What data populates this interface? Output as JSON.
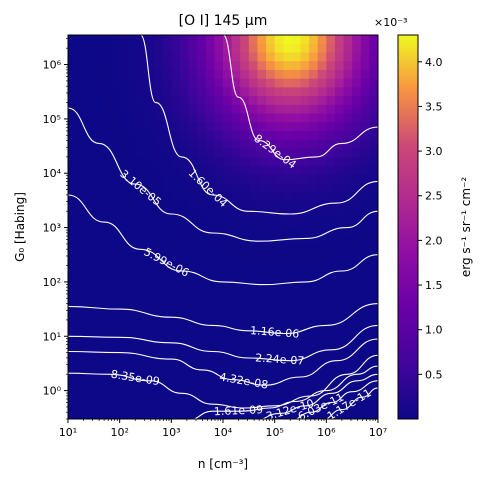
{
  "chart_data": {
    "type": "heatmap",
    "title": "[O I] 145 μm",
    "xlabel": "n [cm⁻³]",
    "ylabel": "G₀ [Habing]",
    "x_scale": "log",
    "y_scale": "log",
    "xlim": [
      10,
      10000000
    ],
    "ylim": [
      0.3,
      3500000
    ],
    "x_tick_labels": [
      "10¹",
      "10²",
      "10³",
      "10⁴",
      "10⁵",
      "10⁶",
      "10⁷"
    ],
    "y_tick_labels": [
      "10⁰",
      "10¹",
      "10²",
      "10³",
      "10⁴",
      "10⁵",
      "10⁶"
    ],
    "colormap": "plasma",
    "colorbar": {
      "label": "erg s⁻¹ sr⁻¹ cm⁻²",
      "offset_label": "×10⁻³",
      "range": [
        0.0,
        0.0043
      ],
      "ticks": [
        "0.5",
        "1.0",
        "1.5",
        "2.0",
        "2.5",
        "3.0",
        "3.5",
        "4.0"
      ]
    },
    "peak": {
      "n": 200000,
      "G0": 3000000,
      "value": 0.0043
    },
    "contour_levels": [
      "8.29e-04",
      "1.60e-04",
      "3.10e-05",
      "5.99e-06",
      "1.16e-06",
      "2.24e-07",
      "4.32e-08",
      "8.35e-09",
      "1.61e-09",
      "3.12e-10",
      "6.03e-11",
      "1.17e-11"
    ],
    "grid": false
  }
}
